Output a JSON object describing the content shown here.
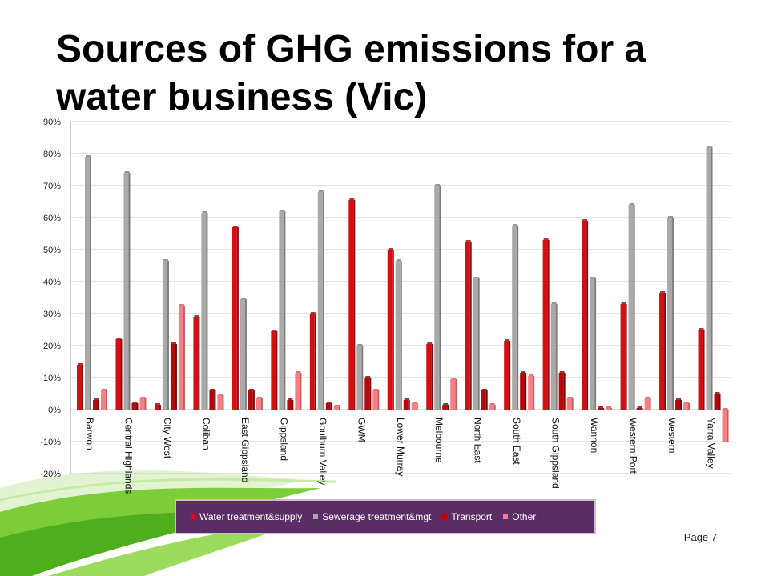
{
  "slide": {
    "title": "Sources of GHG emissions for a water business (Vic)",
    "page_label": "Page 7"
  },
  "colors": {
    "water": "#d40f14",
    "sewerage": "#a9a9a9",
    "transport": "#b5080c",
    "other": "#f47f84",
    "grid": "#c8c8c8",
    "legend_bg": "#5a2d64",
    "swoosh_green": "#5cbf2a"
  },
  "chart_data": {
    "type": "bar",
    "title": "",
    "xlabel": "",
    "ylabel": "",
    "ylim": [
      -20,
      90
    ],
    "ytick_labels": [
      "90%",
      "80%",
      "70%",
      "60%",
      "50%",
      "40%",
      "30%",
      "20%",
      "10%",
      "0%",
      "-10%",
      "-20%"
    ],
    "ytick_values": [
      90,
      80,
      70,
      60,
      50,
      40,
      30,
      20,
      10,
      0,
      -10,
      -20
    ],
    "grid": true,
    "legend_position": "bottom",
    "categories": [
      "Barwon",
      "Central Highlands",
      "City West",
      "Coliban",
      "East Gippsland",
      "Gippsland",
      "Goulburn Valley",
      "GWM",
      "Lower Murray",
      "Melbourne",
      "North East",
      "South East",
      "South Gippsland",
      "Wannon",
      "Western Port",
      "Western",
      "Yarra Valley"
    ],
    "series": [
      {
        "name": "Water treatment&supply",
        "values": [
          14,
          22,
          1.5,
          29,
          57,
          24.5,
          30,
          65.5,
          50,
          20.5,
          52.5,
          21.5,
          53,
          59,
          33,
          36.5,
          25
        ]
      },
      {
        "name": "Sewerage treatment&mgt",
        "values": [
          79,
          74,
          46.5,
          61.5,
          34.5,
          62,
          68,
          20,
          46.5,
          70,
          41,
          57.5,
          33,
          41,
          64,
          60,
          82
        ]
      },
      {
        "name": "Transport",
        "values": [
          3,
          2,
          20.5,
          6,
          6,
          3,
          2,
          10,
          3,
          1.5,
          6,
          11.5,
          11.5,
          0.5,
          0.5,
          3,
          5
        ]
      },
      {
        "name": "Other",
        "values": [
          6,
          3.5,
          32.5,
          4.5,
          3.5,
          11.5,
          1,
          6,
          2,
          9.5,
          1.5,
          10.5,
          3.5,
          0.5,
          3.5,
          2,
          -10
        ]
      }
    ]
  }
}
